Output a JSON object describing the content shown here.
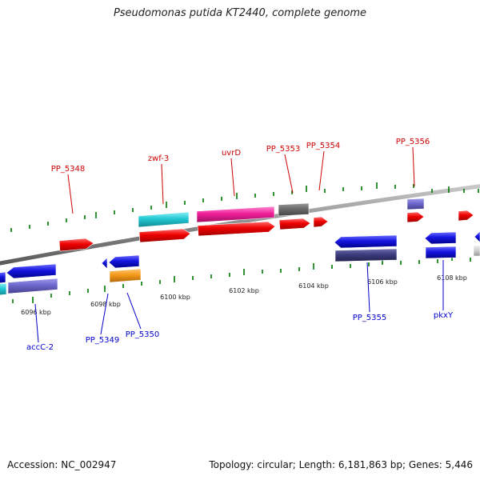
{
  "title": "Pseudomonas putida KT2440, complete genome",
  "footer": {
    "accession": "Accession: NC_002947",
    "topology": "Topology: circular; Length: 6,181,863 bp; Genes: 5,446"
  },
  "colors": {
    "label_top": "#cc0000",
    "label_bottom": "#0000cc",
    "tick": "#007700",
    "backbone": "#8c8c8c"
  },
  "scale_labels": [
    "6096 kbp",
    "6098 kbp",
    "6100 kbp",
    "6102 kbp",
    "6104 kbp",
    "6106 kbp",
    "6108 kbp"
  ],
  "gene_labels_top": [
    "PP_5348",
    "zwf-3",
    "uvrD",
    "PP_5353",
    "PP_5354",
    "PP_5356"
  ],
  "gene_labels_bottom": [
    "accC-2",
    "PP_5349",
    "PP_5350",
    "PP_5355",
    "pkxY"
  ]
}
